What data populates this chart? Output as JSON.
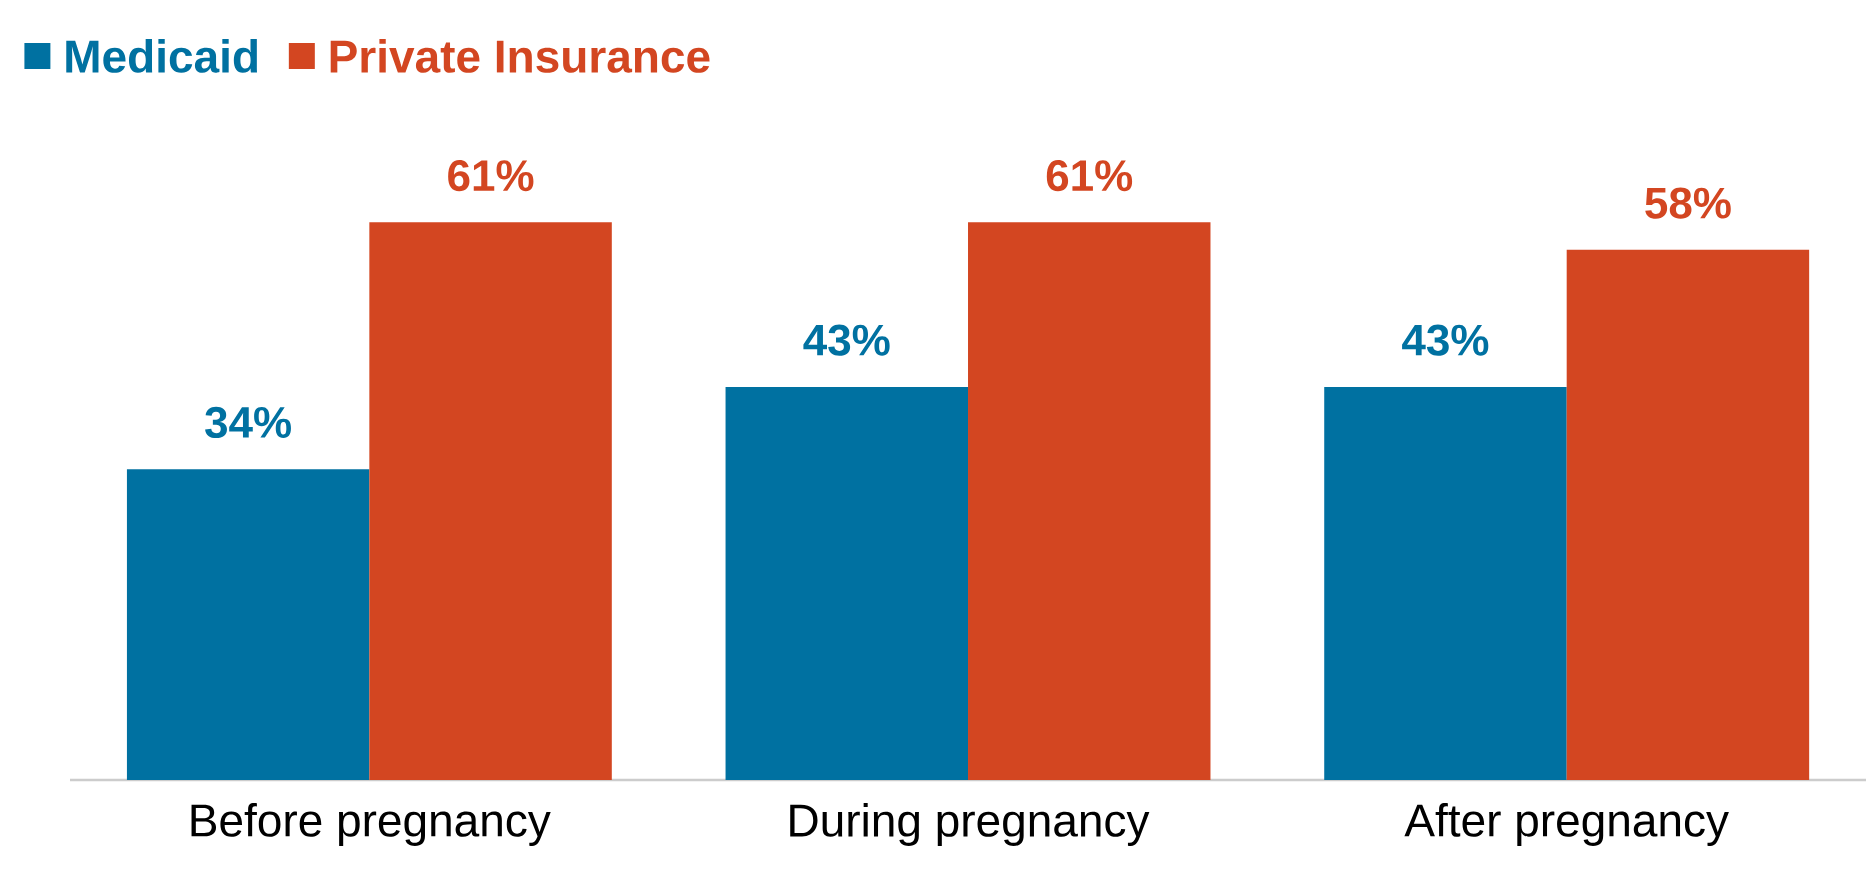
{
  "chart_data": {
    "type": "bar",
    "categories": [
      "Before pregnancy",
      "During pregnancy",
      "After pregnancy"
    ],
    "series": [
      {
        "name": "Medicaid",
        "color": "#0071a1",
        "values": [
          34,
          43,
          43
        ],
        "value_labels": [
          "34%",
          "43%",
          "43%"
        ]
      },
      {
        "name": "Private Insurance",
        "color": "#d34621",
        "values": [
          61,
          61,
          58
        ],
        "value_labels": [
          "61%",
          "61%",
          "58%"
        ]
      }
    ],
    "legend": "top left"
  }
}
